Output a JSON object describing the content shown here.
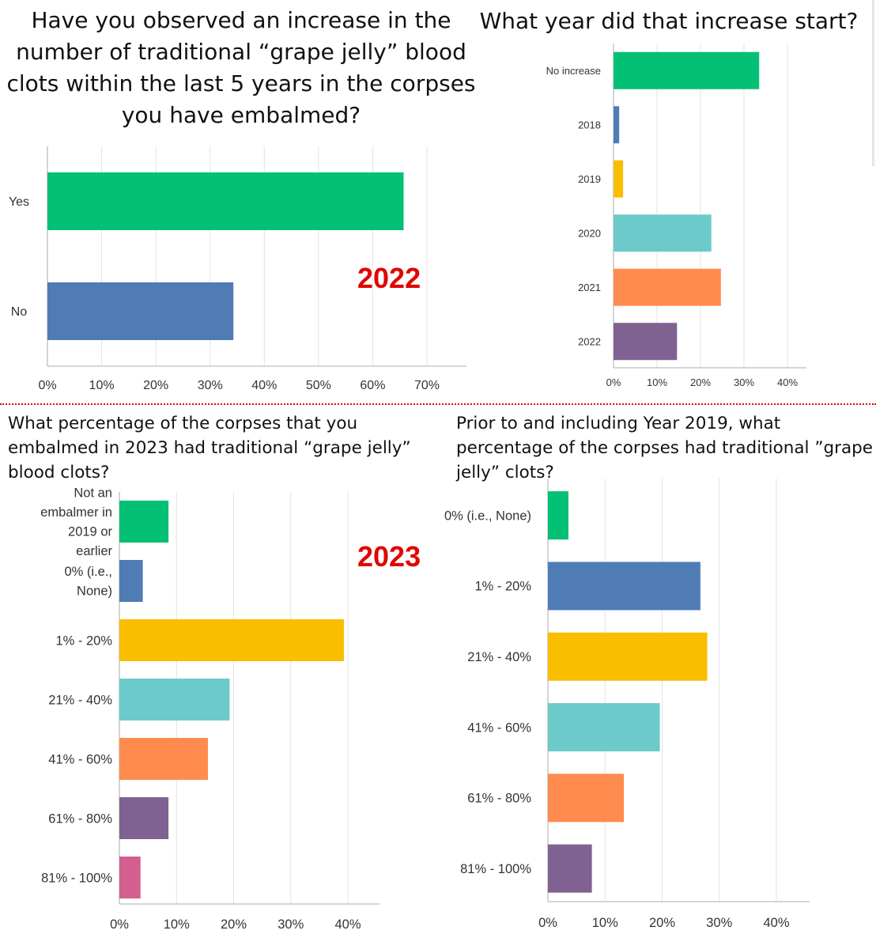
{
  "panels": {
    "p1": {
      "title": "Have you observed an increase in the number of traditional “grape jelly” blood clots within the last 5 years in the corpses you have embalmed?"
    },
    "p2": {
      "title": "What year did that increase start?"
    },
    "p3": {
      "title": "What percentage of the corpses that you embalmed in 2023 had traditional “grape jelly” blood clots?"
    },
    "p4": {
      "title": "Prior to and including Year 2019, what percentage of the corpses had traditional ”grape jelly” clots?"
    }
  },
  "year_tags": {
    "tag_2022": "2022",
    "tag_2023": "2023"
  },
  "colors": {
    "green": "#04c074",
    "blue": "#507cb6",
    "yellow": "#f9be00",
    "teal": "#6ccbca",
    "orange": "#ff8b4f",
    "purple": "#7f6291",
    "pink": "#d25f90",
    "year_tag": "#e10600"
  },
  "chart_data": [
    {
      "type": "bar",
      "orientation": "horizontal",
      "categories": [
        "Yes",
        "No"
      ],
      "values": [
        65.7,
        34.3
      ],
      "colors": [
        "#04c074",
        "#507cb6"
      ],
      "xlim": [
        0,
        70
      ],
      "xticks": [
        "0%",
        "10%",
        "20%",
        "30%",
        "40%",
        "50%",
        "60%",
        "70%"
      ],
      "grid": true
    },
    {
      "type": "bar",
      "orientation": "horizontal",
      "categories": [
        "No increase",
        "2018",
        "2019",
        "2020",
        "2021",
        "2022"
      ],
      "values": [
        33.5,
        1.3,
        2.2,
        22.5,
        24.7,
        14.6
      ],
      "colors": [
        "#04c074",
        "#507cb6",
        "#f9be00",
        "#6ccbca",
        "#ff8b4f",
        "#7f6291"
      ],
      "xlim": [
        0,
        40
      ],
      "xticks": [
        "0%",
        "10%",
        "20%",
        "30%",
        "40%"
      ],
      "grid": true
    },
    {
      "type": "bar",
      "orientation": "horizontal",
      "categories": [
        "Not an embalmer in 2019 or earlier",
        "0% (i.e., None)",
        "1% - 20%",
        "21% - 40%",
        "41% - 60%",
        "61% - 80%",
        "81% - 100%"
      ],
      "values": [
        8.6,
        4.1,
        39.3,
        19.3,
        15.5,
        8.6,
        3.7
      ],
      "colors": [
        "#04c074",
        "#507cb6",
        "#f9be00",
        "#6ccbca",
        "#ff8b4f",
        "#7f6291",
        "#d25f90"
      ],
      "xlim": [
        0,
        40
      ],
      "xticks": [
        "0%",
        "10%",
        "20%",
        "30%",
        "40%"
      ],
      "grid": true
    },
    {
      "type": "bar",
      "orientation": "horizontal",
      "categories": [
        "0% (i.e., None)",
        "1% - 20%",
        "21% - 40%",
        "41% - 60%",
        "61% - 80%",
        "81% - 100%"
      ],
      "values": [
        3.6,
        26.7,
        27.9,
        19.6,
        13.3,
        7.7
      ],
      "colors": [
        "#04c074",
        "#507cb6",
        "#f9be00",
        "#6ccbca",
        "#ff8b4f",
        "#7f6291"
      ],
      "xlim": [
        0,
        40
      ],
      "xticks": [
        "0%",
        "10%",
        "20%",
        "30%",
        "40%"
      ],
      "grid": true
    }
  ]
}
